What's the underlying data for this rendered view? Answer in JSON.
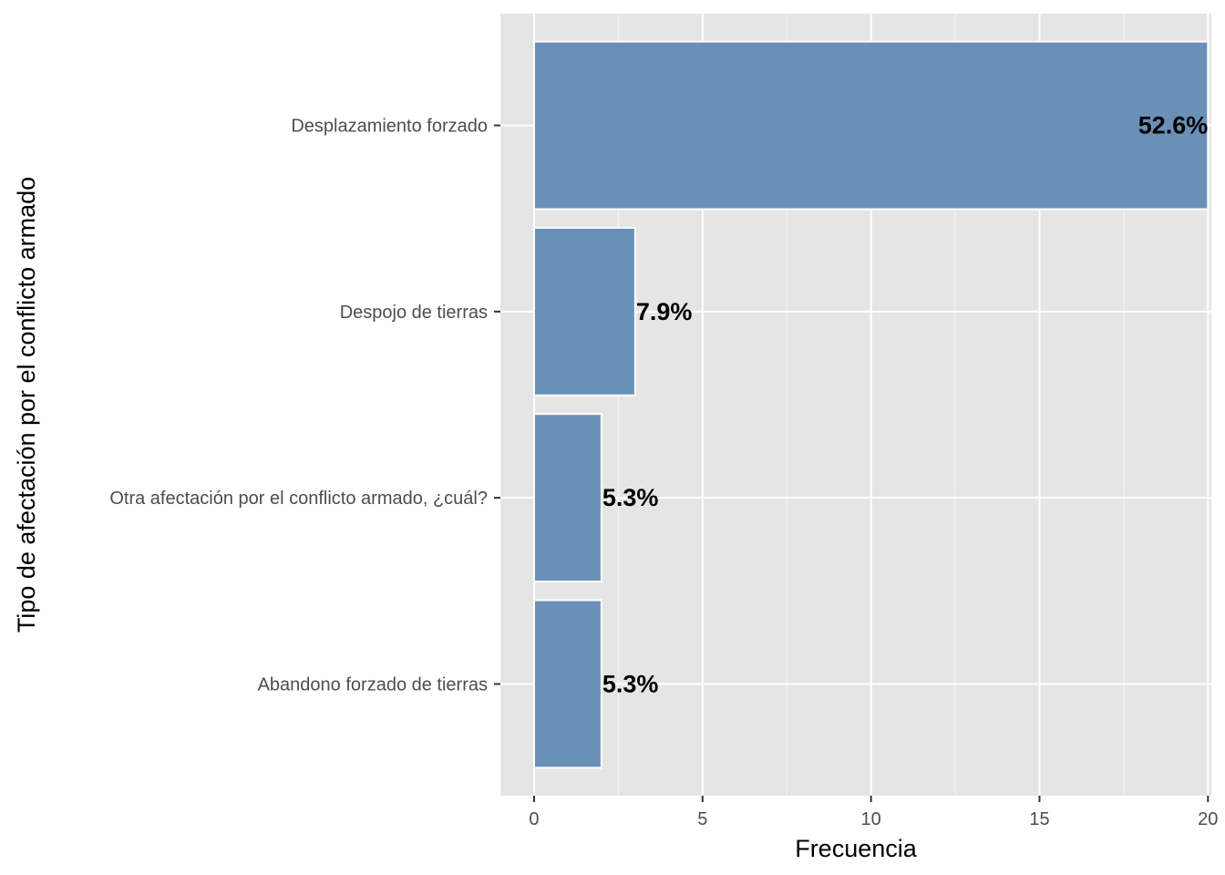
{
  "chart_data": {
    "type": "bar",
    "orientation": "horizontal",
    "categories": [
      "Desplazamiento forzado",
      "Despojo de tierras",
      "Otra afectación por el conflicto armado, ¿cuál?",
      "Abandono forzado de tierras"
    ],
    "values": [
      20,
      3,
      2,
      2
    ],
    "data_labels": [
      "52.6%",
      "7.9%",
      "5.3%",
      "5.3%"
    ],
    "xlabel": "Frecuencia",
    "ylabel": "Tipo de afectación por el conflicto armado",
    "xlim": [
      -1,
      20.1
    ],
    "x_ticks": [
      0,
      5,
      10,
      15,
      20
    ],
    "grid": true,
    "colors": {
      "bar_fill": "#6a90b8",
      "bar_stroke": "#ffffff",
      "panel_background": "#e5e5e5",
      "grid_major": "#ffffff",
      "tick_text": "#4d4d4d",
      "tick_mark": "#333333",
      "label_text": "#000000"
    }
  }
}
